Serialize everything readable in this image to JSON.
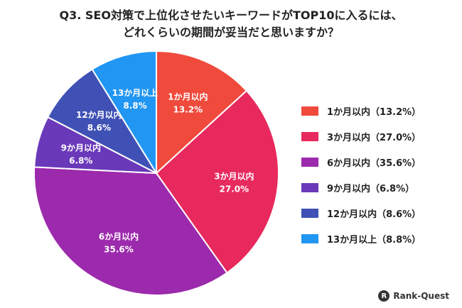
{
  "chart_data": {
    "type": "pie",
    "title_lines": [
      "Q3. SEO対策で上位化させたいキーワードがTOP10に入るには、",
      "どれくらいの期間が妥当だと思いますか？"
    ],
    "slices": [
      {
        "label": "1か月以内",
        "value": 13.2,
        "value_label": "13.2%",
        "legend": "1か月以内（13.2%）",
        "color": "#ef4a3c"
      },
      {
        "label": "3か月以内",
        "value": 27.0,
        "value_label": "27.0%",
        "legend": "3か月以内（27.0%）",
        "color": "#e8295d"
      },
      {
        "label": "6か月以内",
        "value": 35.6,
        "value_label": "35.6%",
        "legend": "6か月以内（35.6%）",
        "color": "#9c2aac"
      },
      {
        "label": "9か月以内",
        "value": 6.8,
        "value_label": "6.8%",
        "legend": "9か月以内（6.8%）",
        "color": "#6a39b9"
      },
      {
        "label": "12か月以内",
        "value": 8.6,
        "value_label": "8.6%",
        "legend": "12か月以内（8.6%）",
        "color": "#3f51b5"
      },
      {
        "label": "13か月以上",
        "value": 8.8,
        "value_label": "8.8%",
        "legend": "13か月以上（8.8%）",
        "color": "#2196f3"
      }
    ],
    "legend_position": "right"
  },
  "brand": {
    "text": "Rank-Quest",
    "icon": "rank-quest-logo-icon"
  }
}
